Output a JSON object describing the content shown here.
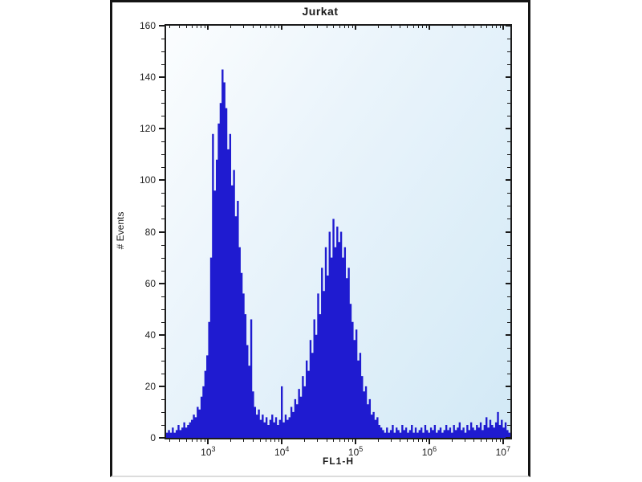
{
  "window": {
    "title": "Jurkat"
  },
  "chart_data": {
    "type": "area",
    "subtype": "flow-cytometry-histogram",
    "title": "Jurkat",
    "xlabel": "FL1-H",
    "ylabel": "# Events",
    "x_scale": "log10",
    "x_min_exp": 2.43,
    "x_max_exp": 7.1,
    "ylim": [
      0,
      160
    ],
    "y_major_ticks": [
      0,
      20,
      40,
      60,
      80,
      100,
      120,
      140,
      160
    ],
    "y_minor_step": 5,
    "x_major_ticks": [
      {
        "base": "10",
        "exp": "3"
      },
      {
        "base": "10",
        "exp": "4"
      },
      {
        "base": "10",
        "exp": "5"
      },
      {
        "base": "10",
        "exp": "6"
      },
      {
        "base": "10",
        "exp": "7"
      }
    ],
    "grid": false,
    "legend": "none",
    "peaks": [
      {
        "x_approx": 1500,
        "height_events": 143
      },
      {
        "x_approx": 50000,
        "height_events": 85
      }
    ],
    "bins": [
      2,
      3,
      2,
      4,
      2,
      3,
      5,
      3,
      4,
      6,
      4,
      5,
      6,
      7,
      9,
      8,
      12,
      11,
      16,
      20,
      26,
      32,
      45,
      70,
      118,
      96,
      108,
      122,
      130,
      143,
      138,
      128,
      112,
      118,
      98,
      104,
      86,
      92,
      74,
      64,
      56,
      48,
      36,
      28,
      46,
      18,
      12,
      9,
      11,
      7,
      9,
      6,
      8,
      5,
      7,
      9,
      6,
      8,
      5,
      7,
      20,
      6,
      9,
      7,
      8,
      12,
      10,
      15,
      13,
      19,
      16,
      24,
      20,
      30,
      26,
      38,
      33,
      46,
      40,
      56,
      48,
      66,
      57,
      74,
      63,
      80,
      70,
      85,
      74,
      82,
      76,
      80,
      70,
      74,
      62,
      66,
      52,
      45,
      38,
      42,
      30,
      33,
      24,
      18,
      20,
      13,
      15,
      9,
      10,
      7,
      8,
      5,
      4,
      3,
      2,
      4,
      2,
      3,
      5,
      2,
      4,
      3,
      2,
      5,
      3,
      4,
      2,
      3,
      5,
      2,
      4,
      2,
      3,
      4,
      2,
      5,
      3,
      2,
      4,
      3,
      5,
      2,
      3,
      4,
      2,
      3,
      5,
      3,
      4,
      2,
      5,
      3,
      4,
      6,
      3,
      4,
      2,
      5,
      3,
      6,
      4,
      3,
      5,
      4,
      6,
      3,
      5,
      8,
      4,
      7,
      5,
      4,
      6,
      10,
      5,
      7,
      4,
      6,
      3,
      2
    ],
    "colors": {
      "histogram_fill": "#1f1bd0",
      "plot_bg_light": "#fbfdfe",
      "plot_bg_dark": "#d2e9f6",
      "axis": "#1c1c1c",
      "text": "#222222"
    }
  }
}
